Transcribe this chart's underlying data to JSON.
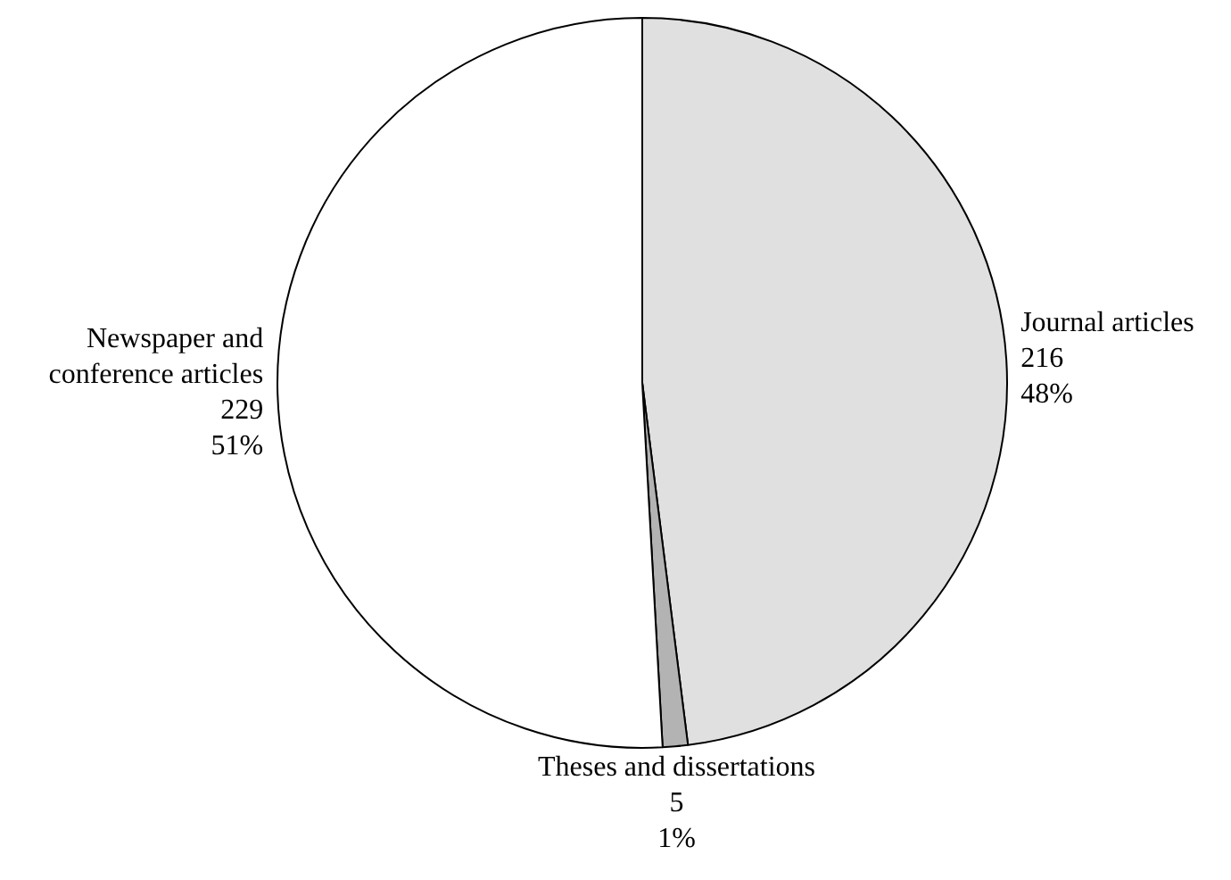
{
  "chart_data": {
    "type": "pie",
    "categories": [
      "Journal articles",
      "Theses and dissertations",
      "Newspaper and conference articles"
    ],
    "values": [
      216,
      5,
      229
    ],
    "value_labels": [
      "216\n48%",
      "5\n1%",
      "229\n51%"
    ],
    "colors": [
      "#e0e0e0",
      "#b3b3b3",
      "#ffffff"
    ],
    "legend": false
  }
}
